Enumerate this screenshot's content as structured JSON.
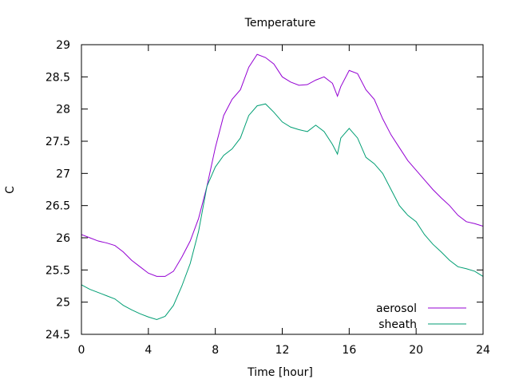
{
  "chart_data": {
    "type": "line",
    "title": "Temperature",
    "xlabel": "Time [hour]",
    "ylabel": "C",
    "xlim": [
      0,
      24
    ],
    "ylim": [
      24.5,
      29
    ],
    "x_ticks": [
      "0",
      "4",
      "8",
      "12",
      "16",
      "20",
      "24"
    ],
    "y_ticks": [
      "24.5",
      "25",
      "25.5",
      "26",
      "26.5",
      "27",
      "27.5",
      "28",
      "28.5",
      "29"
    ],
    "grid": false,
    "legend_position": "bottom-right",
    "x": [
      0,
      0.5,
      1,
      1.5,
      2,
      2.5,
      3,
      3.5,
      4,
      4.5,
      5,
      5.5,
      6,
      6.5,
      7,
      7.5,
      8,
      8.5,
      9,
      9.5,
      10,
      10.5,
      11,
      11.5,
      12,
      12.5,
      13,
      13.5,
      14,
      14.5,
      15,
      15.3,
      15.5,
      16,
      16.5,
      17,
      17.5,
      18,
      18.5,
      19,
      19.5,
      20,
      20.5,
      21,
      21.5,
      22,
      22.5,
      23,
      23.5,
      24
    ],
    "series": [
      {
        "name": "aerosol",
        "color": "#9400d3",
        "values": [
          26.05,
          26.0,
          25.95,
          25.92,
          25.88,
          25.78,
          25.65,
          25.55,
          25.45,
          25.4,
          25.4,
          25.48,
          25.7,
          25.95,
          26.3,
          26.8,
          27.4,
          27.9,
          28.15,
          28.3,
          28.65,
          28.85,
          28.8,
          28.7,
          28.5,
          28.42,
          28.37,
          28.38,
          28.45,
          28.5,
          28.4,
          28.2,
          28.35,
          28.6,
          28.55,
          28.3,
          28.15,
          27.85,
          27.6,
          27.4,
          27.2,
          27.05,
          26.9,
          26.75,
          26.62,
          26.5,
          26.35,
          26.25,
          26.22,
          26.18
        ]
      },
      {
        "name": "sheath",
        "color": "#009e73",
        "values": [
          25.27,
          25.2,
          25.15,
          25.1,
          25.05,
          24.95,
          24.88,
          24.82,
          24.77,
          24.73,
          24.78,
          24.95,
          25.25,
          25.6,
          26.1,
          26.8,
          27.1,
          27.28,
          27.38,
          27.55,
          27.9,
          28.05,
          28.08,
          27.95,
          27.8,
          27.72,
          27.68,
          27.65,
          27.75,
          27.65,
          27.45,
          27.3,
          27.55,
          27.7,
          27.55,
          27.25,
          27.15,
          27.0,
          26.75,
          26.5,
          26.35,
          26.25,
          26.05,
          25.9,
          25.78,
          25.65,
          25.55,
          25.52,
          25.48,
          25.4
        ]
      }
    ]
  }
}
